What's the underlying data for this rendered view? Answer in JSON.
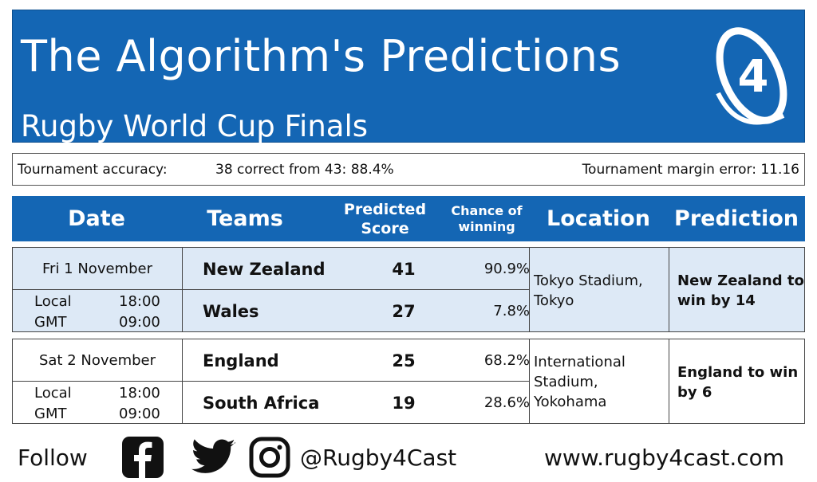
{
  "header": {
    "title": "The Algorithm's Predictions",
    "subtitle": "Rugby World Cup Finals",
    "logo_text": "4"
  },
  "accuracy": {
    "label": "Tournament accuracy:",
    "value": "38 correct from 43: 88.4%",
    "margin": "Tournament margin error: 11.16"
  },
  "table": {
    "headers": {
      "date": "Date",
      "teams": "Teams",
      "score_l1": "Predicted",
      "score_l2": "Score",
      "chance_l1": "Chance of",
      "chance_l2": "winning",
      "location": "Location",
      "prediction": "Prediction"
    },
    "matches": [
      {
        "date": "Fri 1 November",
        "local_label": "Local",
        "local_time": "18:00",
        "gmt_label": "GMT",
        "gmt_time": "09:00",
        "team1": "New Zealand",
        "score1": "41",
        "chance1": "90.9%",
        "team2": "Wales",
        "score2": "27",
        "chance2": "7.8%",
        "location": "Tokyo Stadium, Tokyo",
        "prediction": "New Zealand to win by 14"
      },
      {
        "date": "Sat 2 November",
        "local_label": "Local",
        "local_time": "18:00",
        "gmt_label": "GMT",
        "gmt_time": "09:00",
        "team1": "England",
        "score1": "25",
        "chance1": "68.2%",
        "team2": "South Africa",
        "score2": "19",
        "chance2": "28.6%",
        "location": "International Stadium, Yokohama",
        "prediction": "England to win by 6"
      }
    ]
  },
  "footer": {
    "follow": "Follow",
    "icons": [
      "facebook-icon",
      "twitter-icon",
      "instagram-icon"
    ],
    "handle": "@Rugby4Cast",
    "website": "www.rugby4cast.com"
  },
  "colors": {
    "brand_blue": "#1466b4",
    "row_highlight": "#dde9f6"
  }
}
